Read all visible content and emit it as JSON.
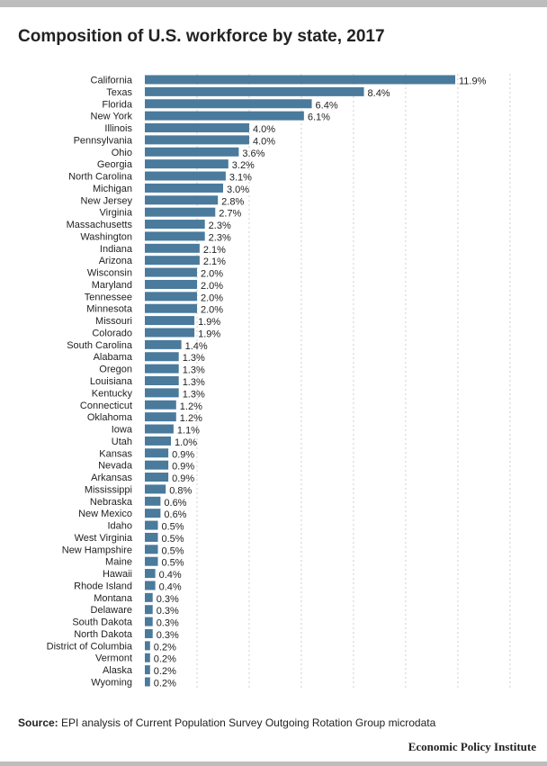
{
  "title": "Composition of U.S. workforce by state, 2017",
  "source_label": "Source:",
  "source_text": "EPI analysis of Current Population Survey Outgoing Rotation Group microdata",
  "brand": "Economic Policy Institute",
  "colors": {
    "bar": "#4a7a9c",
    "grid": "#cfcfcf",
    "rule": "#bdbdbd"
  },
  "chart_data": {
    "type": "bar",
    "orientation": "horizontal",
    "title": "Composition of U.S. workforce by state, 2017",
    "value_suffix": "%",
    "grid": true,
    "xlim": [
      0,
      14
    ],
    "categories": [
      "California",
      "Texas",
      "Florida",
      "New York",
      "Illinois",
      "Pennsylvania",
      "Ohio",
      "Georgia",
      "North Carolina",
      "Michigan",
      "New Jersey",
      "Virginia",
      "Massachusetts",
      "Washington",
      "Indiana",
      "Arizona",
      "Wisconsin",
      "Maryland",
      "Tennessee",
      "Minnesota",
      "Missouri",
      "Colorado",
      "South Carolina",
      "Alabama",
      "Oregon",
      "Louisiana",
      "Kentucky",
      "Connecticut",
      "Oklahoma",
      "Iowa",
      "Utah",
      "Kansas",
      "Nevada",
      "Arkansas",
      "Mississippi",
      "Nebraska",
      "New Mexico",
      "Idaho",
      "West Virginia",
      "New Hampshire",
      "Maine",
      "Hawaii",
      "Rhode Island",
      "Montana",
      "Delaware",
      "South Dakota",
      "North Dakota",
      "District of Columbia",
      "Vermont",
      "Alaska",
      "Wyoming"
    ],
    "values": [
      11.9,
      8.4,
      6.4,
      6.1,
      4.0,
      4.0,
      3.6,
      3.2,
      3.1,
      3.0,
      2.8,
      2.7,
      2.3,
      2.3,
      2.1,
      2.1,
      2.0,
      2.0,
      2.0,
      2.0,
      1.9,
      1.9,
      1.4,
      1.3,
      1.3,
      1.3,
      1.3,
      1.2,
      1.2,
      1.1,
      1.0,
      0.9,
      0.9,
      0.9,
      0.8,
      0.6,
      0.6,
      0.5,
      0.5,
      0.5,
      0.5,
      0.4,
      0.4,
      0.3,
      0.3,
      0.3,
      0.3,
      0.2,
      0.2,
      0.2,
      0.2
    ],
    "value_labels": [
      "11.9%",
      "8.4%",
      "6.4%",
      "6.1%",
      "4.0%",
      "4.0%",
      "3.6%",
      "3.2%",
      "3.1%",
      "3.0%",
      "2.8%",
      "2.7%",
      "2.3%",
      "2.3%",
      "2.1%",
      "2.1%",
      "2.0%",
      "2.0%",
      "2.0%",
      "2.0%",
      "1.9%",
      "1.9%",
      "1.4%",
      "1.3%",
      "1.3%",
      "1.3%",
      "1.3%",
      "1.2%",
      "1.2%",
      "1.1%",
      "1.0%",
      "0.9%",
      "0.9%",
      "0.9%",
      "0.8%",
      "0.6%",
      "0.6%",
      "0.5%",
      "0.5%",
      "0.5%",
      "0.5%",
      "0.4%",
      "0.4%",
      "0.3%",
      "0.3%",
      "0.3%",
      "0.3%",
      "0.2%",
      "0.2%",
      "0.2%",
      "0.2%"
    ]
  }
}
